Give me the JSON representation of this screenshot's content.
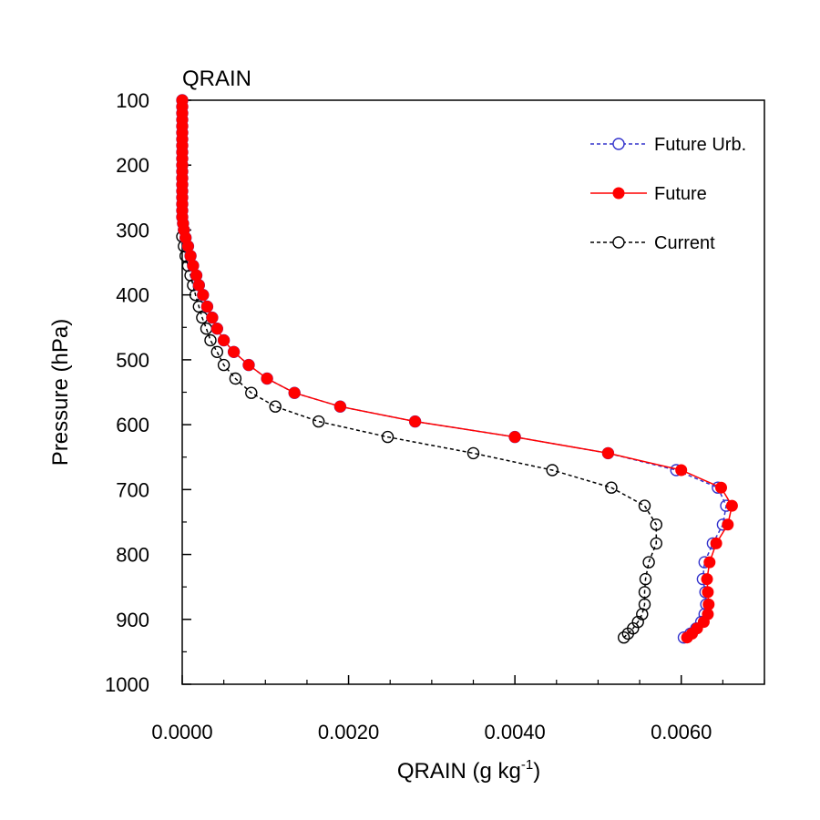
{
  "chart_data": {
    "type": "line",
    "title": "QRAIN",
    "xlabel": "QRAIN (g kg",
    "xlabel_sup": "-1",
    "xlabel_close": ")",
    "ylabel": "Pressure (hPa)",
    "xlim": [
      0.0,
      0.007
    ],
    "ylim": [
      100,
      1000
    ],
    "y_inverted": true,
    "xticks": [
      0.0,
      0.002,
      0.004,
      0.006
    ],
    "xtick_labels": [
      "0.0000",
      "0.0020",
      "0.0040",
      "0.0060"
    ],
    "x_minor_ticks": [
      0.0005,
      0.001,
      0.0015,
      0.0025,
      0.003,
      0.0035,
      0.0045,
      0.005,
      0.0055,
      0.0065,
      0.007
    ],
    "yticks": [
      100,
      200,
      300,
      400,
      500,
      600,
      700,
      800,
      900,
      1000
    ],
    "ytick_labels": [
      "100",
      "200",
      "300",
      "400",
      "500",
      "600",
      "700",
      "800",
      "900",
      "1000"
    ],
    "y_minor_ticks": [
      150,
      250,
      350,
      450,
      550,
      650,
      750,
      850,
      950
    ],
    "legend_position": "top-right",
    "series": [
      {
        "name": "Future Urb.",
        "color": "#3333cc",
        "line_style": "dashed",
        "marker": "open-circle",
        "points": [
          [
            0.0,
            100
          ],
          [
            0.0,
            110
          ],
          [
            0.0,
            120
          ],
          [
            0.0,
            130
          ],
          [
            0.0,
            140
          ],
          [
            0.0,
            150
          ],
          [
            0.0,
            160
          ],
          [
            0.0,
            170
          ],
          [
            0.0,
            180
          ],
          [
            0.0,
            190
          ],
          [
            0.0,
            200
          ],
          [
            0.0,
            210
          ],
          [
            0.0,
            220
          ],
          [
            0.0,
            230
          ],
          [
            0.0,
            240
          ],
          [
            0.0,
            250
          ],
          [
            0.0,
            260
          ],
          [
            0.0,
            270
          ],
          [
            0.0,
            280
          ],
          [
            1e-05,
            290
          ],
          [
            2e-05,
            300
          ],
          [
            4e-05,
            312
          ],
          [
            7e-05,
            325
          ],
          [
            0.0001,
            340
          ],
          [
            0.00013,
            355
          ],
          [
            0.00017,
            370
          ],
          [
            0.0002,
            385
          ],
          [
            0.00025,
            400
          ],
          [
            0.0003,
            418
          ],
          [
            0.00036,
            435
          ],
          [
            0.00042,
            452
          ],
          [
            0.0005,
            470
          ],
          [
            0.00062,
            488
          ],
          [
            0.0008,
            508
          ],
          [
            0.00102,
            529
          ],
          [
            0.00135,
            551
          ],
          [
            0.0019,
            572
          ],
          [
            0.0028,
            595
          ],
          [
            0.004,
            619
          ],
          [
            0.00512,
            644
          ],
          [
            0.00594,
            670
          ],
          [
            0.00644,
            697
          ],
          [
            0.00654,
            725
          ],
          [
            0.0065,
            754
          ],
          [
            0.00638,
            783
          ],
          [
            0.00628,
            812
          ],
          [
            0.00626,
            838
          ],
          [
            0.00629,
            858
          ],
          [
            0.0063,
            877
          ],
          [
            0.00628,
            892
          ],
          [
            0.00624,
            904
          ],
          [
            0.00618,
            914
          ],
          [
            0.00611,
            922
          ],
          [
            0.00603,
            928
          ]
        ]
      },
      {
        "name": "Future",
        "color": "#ff0000",
        "line_style": "solid",
        "marker": "filled-circle",
        "points": [
          [
            0.0,
            100
          ],
          [
            0.0,
            110
          ],
          [
            0.0,
            120
          ],
          [
            0.0,
            130
          ],
          [
            0.0,
            140
          ],
          [
            0.0,
            150
          ],
          [
            0.0,
            160
          ],
          [
            0.0,
            170
          ],
          [
            0.0,
            180
          ],
          [
            0.0,
            190
          ],
          [
            0.0,
            200
          ],
          [
            0.0,
            210
          ],
          [
            0.0,
            220
          ],
          [
            0.0,
            230
          ],
          [
            0.0,
            240
          ],
          [
            0.0,
            250
          ],
          [
            0.0,
            260
          ],
          [
            0.0,
            270
          ],
          [
            0.0,
            280
          ],
          [
            1e-05,
            290
          ],
          [
            2e-05,
            300
          ],
          [
            4e-05,
            312
          ],
          [
            7e-05,
            325
          ],
          [
            0.0001,
            340
          ],
          [
            0.00013,
            355
          ],
          [
            0.00017,
            370
          ],
          [
            0.0002,
            385
          ],
          [
            0.00025,
            400
          ],
          [
            0.0003,
            418
          ],
          [
            0.00036,
            435
          ],
          [
            0.00042,
            452
          ],
          [
            0.0005,
            470
          ],
          [
            0.00062,
            488
          ],
          [
            0.0008,
            508
          ],
          [
            0.00102,
            529
          ],
          [
            0.00135,
            551
          ],
          [
            0.0019,
            572
          ],
          [
            0.0028,
            595
          ],
          [
            0.004,
            619
          ],
          [
            0.00512,
            644
          ],
          [
            0.006,
            670
          ],
          [
            0.00648,
            697
          ],
          [
            0.00661,
            725
          ],
          [
            0.00656,
            754
          ],
          [
            0.00642,
            783
          ],
          [
            0.00634,
            812
          ],
          [
            0.00631,
            838
          ],
          [
            0.00632,
            858
          ],
          [
            0.00633,
            877
          ],
          [
            0.00632,
            892
          ],
          [
            0.00627,
            904
          ],
          [
            0.00619,
            914
          ],
          [
            0.00613,
            922
          ],
          [
            0.00607,
            928
          ]
        ]
      },
      {
        "name": "Current",
        "color": "#000000",
        "line_style": "dashed",
        "marker": "open-circle",
        "points": [
          [
            0.0,
            310
          ],
          [
            2e-05,
            325
          ],
          [
            4e-05,
            340
          ],
          [
            7e-05,
            355
          ],
          [
            0.0001,
            370
          ],
          [
            0.00013,
            385
          ],
          [
            0.00016,
            400
          ],
          [
            0.0002,
            418
          ],
          [
            0.00024,
            435
          ],
          [
            0.00029,
            452
          ],
          [
            0.00034,
            470
          ],
          [
            0.00042,
            488
          ],
          [
            0.0005,
            508
          ],
          [
            0.00064,
            529
          ],
          [
            0.00083,
            551
          ],
          [
            0.00112,
            572
          ],
          [
            0.00164,
            595
          ],
          [
            0.00247,
            619
          ],
          [
            0.0035,
            644
          ],
          [
            0.00445,
            670
          ],
          [
            0.00516,
            697
          ],
          [
            0.00556,
            725
          ],
          [
            0.0057,
            754
          ],
          [
            0.0057,
            783
          ],
          [
            0.00561,
            812
          ],
          [
            0.00557,
            838
          ],
          [
            0.00556,
            858
          ],
          [
            0.00556,
            877
          ],
          [
            0.00553,
            892
          ],
          [
            0.00548,
            904
          ],
          [
            0.00542,
            914
          ],
          [
            0.00536,
            922
          ],
          [
            0.00531,
            928
          ]
        ]
      }
    ]
  }
}
